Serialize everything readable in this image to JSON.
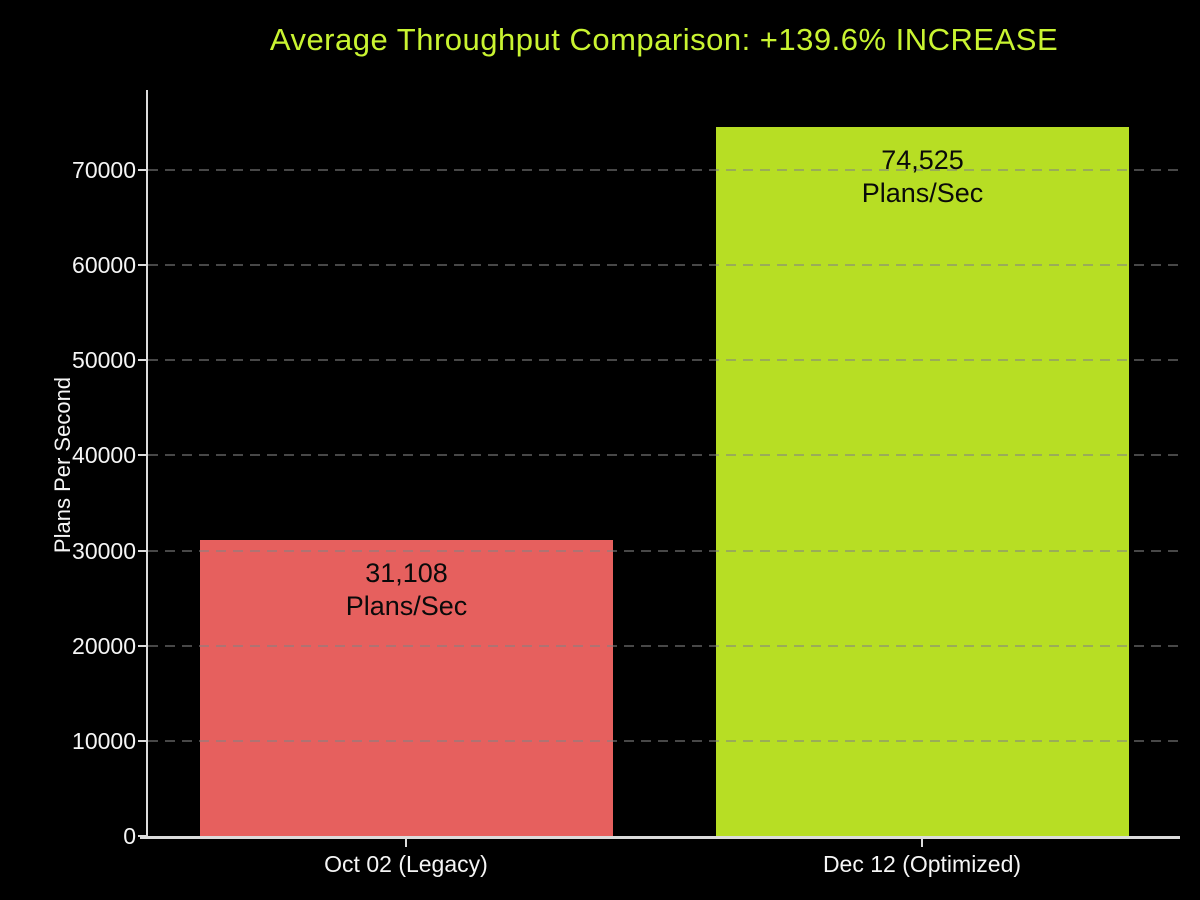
{
  "page": {
    "background_color": "#000000"
  },
  "title": {
    "text": "Average Throughput Comparison: +139.6% INCREASE",
    "color": "#c9f431"
  },
  "axis": {
    "text_color": "#f5f5f5",
    "spine_color": "#dcdcdc"
  },
  "chart_data": {
    "type": "bar",
    "title": "Average Throughput Comparison: +139.6% INCREASE",
    "categories": [
      "Oct 02 (Legacy)",
      "Dec 12 (Optimized)"
    ],
    "values": [
      31108,
      74525
    ],
    "bar_colors": [
      "#e6605e",
      "#b7de24"
    ],
    "bar_labels": [
      [
        "31,108",
        "Plans/Sec"
      ],
      [
        "74,525",
        "Plans/Sec"
      ]
    ],
    "bar_label_color": "#0a0a0a",
    "xlabel": "",
    "ylabel": "Plans Per Second",
    "yticks": [
      0,
      10000,
      20000,
      30000,
      40000,
      50000,
      60000,
      70000
    ],
    "ylim": [
      0,
      78400
    ],
    "grid": {
      "axis": "y",
      "style": "dashed",
      "color": "rgba(130,130,130,0.55)",
      "drawn_above_bars": true
    },
    "legend": "none"
  }
}
